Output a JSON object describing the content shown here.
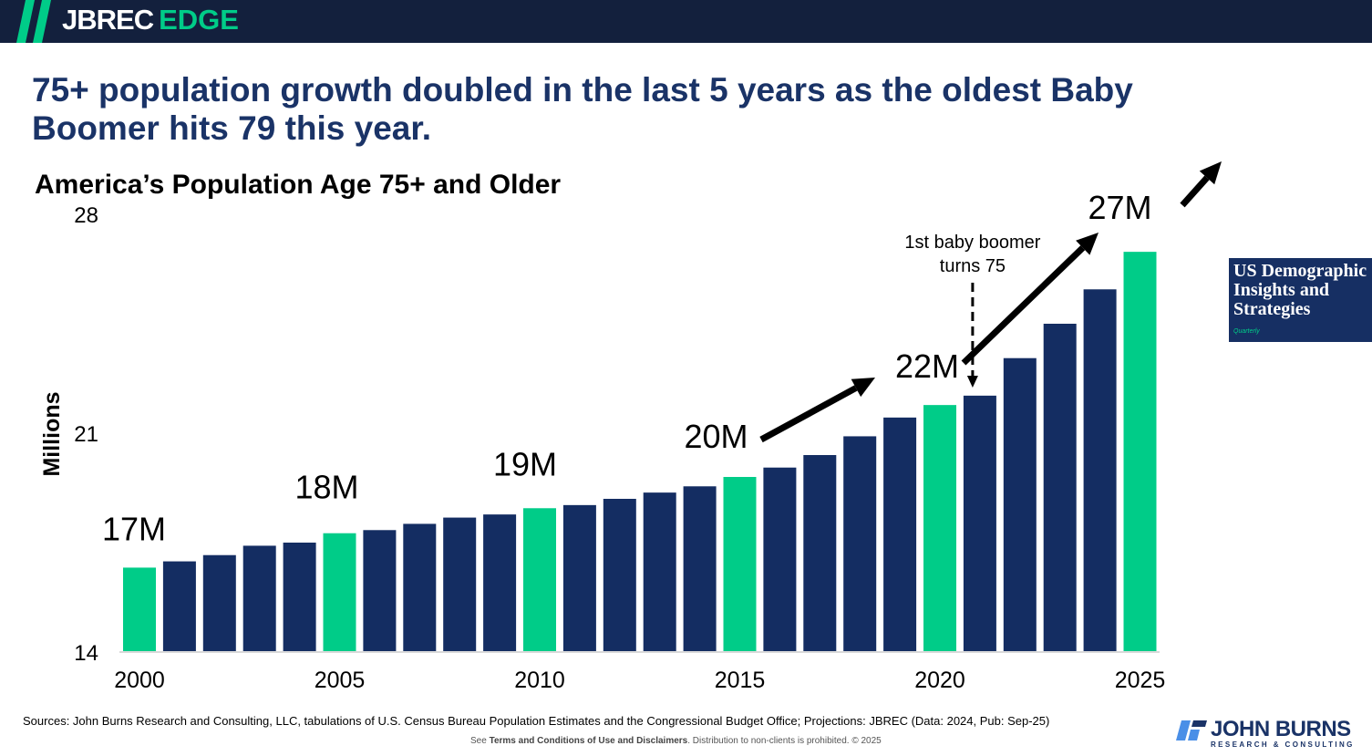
{
  "header": {
    "brand_primary": "JBREC",
    "brand_secondary": "EDGE",
    "brand_colors": {
      "bar": "#13203d",
      "accent": "#00cc88"
    }
  },
  "headline": "75+ population growth doubled in the last 5 years as the oldest Baby Boomer hits 79 this year.",
  "publication_card": {
    "title": "US Demographic\nInsights and\nStrategies",
    "subtitle": "Quarterly"
  },
  "chart_data": {
    "type": "bar",
    "title": "America’s Population Age 75+ and Older",
    "xlabel": "",
    "ylabel": "Millions",
    "ylim": [
      14,
      28
    ],
    "yticks": [
      14,
      21,
      28
    ],
    "xtick_labels": [
      "2000",
      "2005",
      "2010",
      "2015",
      "2020",
      "2025"
    ],
    "grid": false,
    "categories": [
      "2000",
      "2001",
      "2002",
      "2003",
      "2004",
      "2005",
      "2006",
      "2007",
      "2008",
      "2009",
      "2010",
      "2011",
      "2012",
      "2013",
      "2014",
      "2015",
      "2016",
      "2017",
      "2018",
      "2019",
      "2020",
      "2021",
      "2022",
      "2023",
      "2024",
      "2025"
    ],
    "values": [
      16.7,
      16.9,
      17.1,
      17.4,
      17.5,
      17.8,
      17.9,
      18.1,
      18.3,
      18.4,
      18.6,
      18.7,
      18.9,
      19.1,
      19.3,
      19.6,
      19.9,
      20.3,
      20.9,
      21.5,
      21.9,
      22.2,
      23.4,
      24.5,
      25.6,
      26.8
    ],
    "highlight_years": [
      "2000",
      "2005",
      "2010",
      "2015",
      "2020",
      "2025"
    ],
    "colors": {
      "default": "#142d62",
      "highlight": "#00cc88"
    },
    "data_labels": [
      {
        "category": "2000",
        "text": "17M"
      },
      {
        "category": "2005",
        "text": "18M"
      },
      {
        "category": "2010",
        "text": "19M"
      },
      {
        "category": "2015",
        "text": "20M"
      },
      {
        "category": "2020",
        "text": "22M"
      },
      {
        "category": "2025",
        "text": "27M"
      }
    ],
    "annotations": [
      {
        "text_line1": "1st baby boomer",
        "text_line2": "turns 75",
        "category": "2021",
        "style": "dashed-down-arrow"
      },
      {
        "type": "trend-arrow",
        "from": "2015",
        "to": "2020"
      },
      {
        "type": "trend-arrow",
        "from": "2021",
        "to": "2025"
      },
      {
        "type": "trend-arrow",
        "from": "2025",
        "to": "beyond"
      }
    ]
  },
  "footer": {
    "sources": "Sources: John Burns Research and Consulting, LLC, tabulations of U.S. Census Bureau Population Estimates and the Congressional Budget Office; Projections: JBREC (Data: 2024, Pub: Sep-25)",
    "terms_prefix": "See ",
    "terms_link": "Terms and Conditions of Use and Disclaimers",
    "terms_suffix": ". Distribution to non-clients is prohibited. © 2025",
    "company_name": "JOHN BURNS",
    "company_tagline": "RESEARCH & CONSULTING"
  }
}
